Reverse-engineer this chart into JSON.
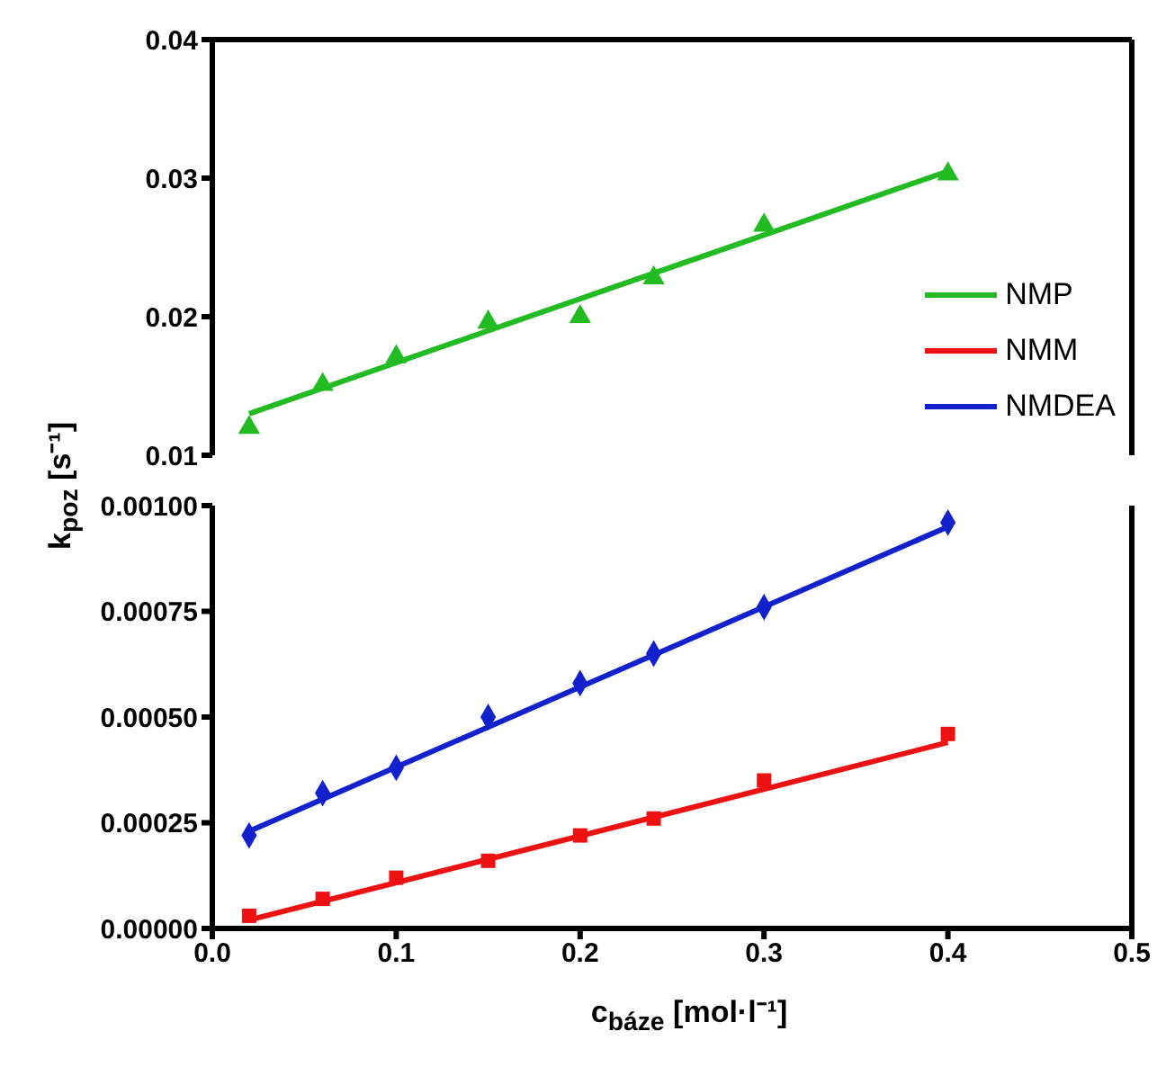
{
  "chart_data": [
    {
      "type": "scatter",
      "xlim": [
        0,
        0.5
      ],
      "xticks": [
        0,
        0.1,
        0.2,
        0.3,
        0.4,
        0.5
      ],
      "ylim": [
        0.01,
        0.04
      ],
      "yticks": [
        0.01,
        0.02,
        0.03,
        0.04
      ],
      "tick_labels": "y",
      "legend": "right",
      "series": [
        {
          "color": "#22bb22",
          "marker": "triangle",
          "x": [
            0.02,
            0.06,
            0.1,
            0.15,
            0.2,
            0.24,
            0.3,
            0.4
          ],
          "values": [
            0.012,
            0.0151,
            0.0171,
            0.0196,
            0.02,
            0.0228,
            0.0266,
            0.0303
          ]
        },
        {
          "type": "line",
          "name": "NMP",
          "color": "#22bb22",
          "marker": "none",
          "x": [
            0.02,
            0.4
          ],
          "values": [
            0.013,
            0.0305
          ]
        }
      ]
    },
    {
      "type": "scatter",
      "xlabel": "c$_{báze}$ [mol·l⁻¹]",
      "ylabel": "k$_{poz}$ [s⁻¹]",
      "xlim": [
        0,
        0.5
      ],
      "xticks": [
        {
          "value": 0,
          "label": "0.0"
        },
        0.1,
        0.2,
        0.3,
        0.4,
        0.5
      ],
      "ylim": [
        0,
        0.001
      ],
      "yticks": [
        {
          "value": 0,
          "label": "0.00000"
        },
        {
          "value": 0.00025,
          "label": "0.00025"
        },
        {
          "value": 0.0005,
          "label": "0.00050"
        },
        {
          "value": 0.00075,
          "label": "0.00075"
        },
        {
          "value": 0.001,
          "label": "0.00100"
        }
      ],
      "series": [
        {
          "type": "line",
          "name": "NMM",
          "color": "#ee1111",
          "marker": "none",
          "x": [
            0.02,
            0.4
          ],
          "values": [
            2e-05,
            0.00044
          ]
        },
        {
          "type": "line",
          "name": "NMDEA",
          "color": "#1122cc",
          "marker": "none",
          "x": [
            0.02,
            0.4
          ],
          "values": [
            0.00023,
            0.00095
          ]
        },
        {
          "color": "#ee1111",
          "marker": "square",
          "x": [
            0.02,
            0.06,
            0.1,
            0.15,
            0.2,
            0.24,
            0.3,
            0.4
          ],
          "values": [
            3e-05,
            7e-05,
            0.00012,
            0.00016,
            0.00022,
            0.00026,
            0.00035,
            0.00046
          ]
        },
        {
          "color": "#1122cc",
          "marker": "diamond",
          "x": [
            0.02,
            0.06,
            0.1,
            0.15,
            0.2,
            0.24,
            0.3,
            0.4
          ],
          "values": [
            0.00022,
            0.00032,
            0.00038,
            0.0005,
            0.00058,
            0.00065,
            0.00076,
            0.00096
          ]
        }
      ]
    }
  ]
}
